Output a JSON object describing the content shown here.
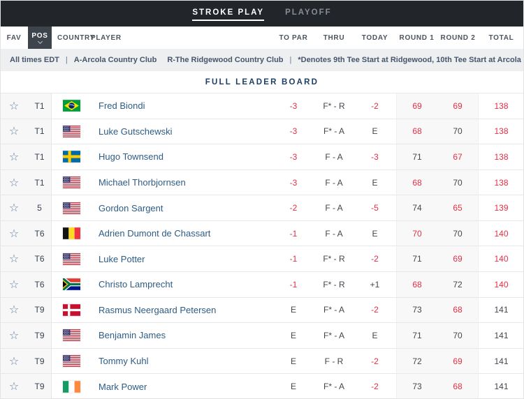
{
  "top_tabs": {
    "stroke_play": "STROKE PLAY",
    "playoff": "PLAYOFF"
  },
  "columns": {
    "fav": "FAV",
    "pos": "POS",
    "country": "COUNTRY",
    "player": "PLAYER",
    "to_par": "TO PAR",
    "thru": "THRU",
    "today": "TODAY",
    "round1": "ROUND 1",
    "round2": "ROUND 2",
    "total": "TOTAL"
  },
  "info_bar": {
    "all_times": "All times EDT",
    "separator": "|",
    "course_a": "A-Arcola Country Club",
    "course_r": "R-The Ridgewood Country Club",
    "note": "*Denotes 9th Tee Start at Ridgewood, 10th Tee Start at Arcola"
  },
  "section_title": "FULL LEADER BOARD",
  "icons": {
    "favorite_star": "☆",
    "pos_sort": "chevron-down"
  },
  "colors": {
    "topbar": "#22262b",
    "under_par_red": "#e52e47",
    "neutral_score": "#42474d",
    "player_navy": "#2d5c86",
    "title_navy": "#1d3f66"
  },
  "rows": [
    {
      "position": "T1",
      "country": "Brazil",
      "country_code": "BRA",
      "player": "Fred Biondi",
      "to_par": "-3",
      "thru": "F* - R",
      "today": "-2",
      "round1": "69",
      "round2": "69",
      "total": "138",
      "under": {
        "to_par": true,
        "today": true,
        "round1": true,
        "round2": true,
        "total": true
      }
    },
    {
      "position": "T1",
      "country": "United States",
      "country_code": "USA",
      "player": "Luke Gutschewski",
      "to_par": "-3",
      "thru": "F* - A",
      "today": "E",
      "round1": "68",
      "round2": "70",
      "total": "138",
      "under": {
        "to_par": true,
        "round1": true,
        "total": true
      }
    },
    {
      "position": "T1",
      "country": "Sweden",
      "country_code": "SWE",
      "player": "Hugo Townsend",
      "to_par": "-3",
      "thru": "F - A",
      "today": "-3",
      "round1": "71",
      "round2": "67",
      "total": "138",
      "under": {
        "to_par": true,
        "today": true,
        "round2": true,
        "total": true
      }
    },
    {
      "position": "T1",
      "country": "United States",
      "country_code": "USA",
      "player": "Michael Thorbjornsen",
      "to_par": "-3",
      "thru": "F - A",
      "today": "E",
      "round1": "68",
      "round2": "70",
      "total": "138",
      "under": {
        "to_par": true,
        "round1": true,
        "total": true
      }
    },
    {
      "position": "5",
      "country": "United States",
      "country_code": "USA",
      "player": "Gordon Sargent",
      "to_par": "-2",
      "thru": "F - A",
      "today": "-5",
      "round1": "74",
      "round2": "65",
      "total": "139",
      "under": {
        "to_par": true,
        "today": true,
        "round2": true,
        "total": true
      }
    },
    {
      "position": "T6",
      "country": "Belgium",
      "country_code": "BEL",
      "player": "Adrien Dumont de Chassart",
      "to_par": "-1",
      "thru": "F - A",
      "today": "E",
      "round1": "70",
      "round2": "70",
      "total": "140",
      "under": {
        "to_par": true,
        "round1": true,
        "total": true
      }
    },
    {
      "position": "T6",
      "country": "United States",
      "country_code": "USA",
      "player": "Luke Potter",
      "to_par": "-1",
      "thru": "F* - R",
      "today": "-2",
      "round1": "71",
      "round2": "69",
      "total": "140",
      "under": {
        "to_par": true,
        "today": true,
        "round2": true,
        "total": true
      }
    },
    {
      "position": "T6",
      "country": "South Africa",
      "country_code": "RSA",
      "player": "Christo Lamprecht",
      "to_par": "-1",
      "thru": "F* - R",
      "today": "+1",
      "round1": "68",
      "round2": "72",
      "total": "140",
      "under": {
        "to_par": true,
        "round1": true,
        "total": true
      }
    },
    {
      "position": "T9",
      "country": "Denmark",
      "country_code": "DEN",
      "player": "Rasmus Neergaard Petersen",
      "to_par": "E",
      "thru": "F* - A",
      "today": "-2",
      "round1": "73",
      "round2": "68",
      "total": "141",
      "under": {
        "today": true,
        "round2": true
      }
    },
    {
      "position": "T9",
      "country": "United States",
      "country_code": "USA",
      "player": "Benjamin James",
      "to_par": "E",
      "thru": "F* - A",
      "today": "E",
      "round1": "71",
      "round2": "70",
      "total": "141",
      "under": {}
    },
    {
      "position": "T9",
      "country": "United States",
      "country_code": "USA",
      "player": "Tommy Kuhl",
      "to_par": "E",
      "thru": "F - R",
      "today": "-2",
      "round1": "72",
      "round2": "69",
      "total": "141",
      "under": {
        "today": true,
        "round2": true
      }
    },
    {
      "position": "T9",
      "country": "Ireland",
      "country_code": "IRL",
      "player": "Mark Power",
      "to_par": "E",
      "thru": "F* - A",
      "today": "-2",
      "round1": "73",
      "round2": "68",
      "total": "141",
      "under": {
        "today": true,
        "round2": true
      }
    }
  ]
}
